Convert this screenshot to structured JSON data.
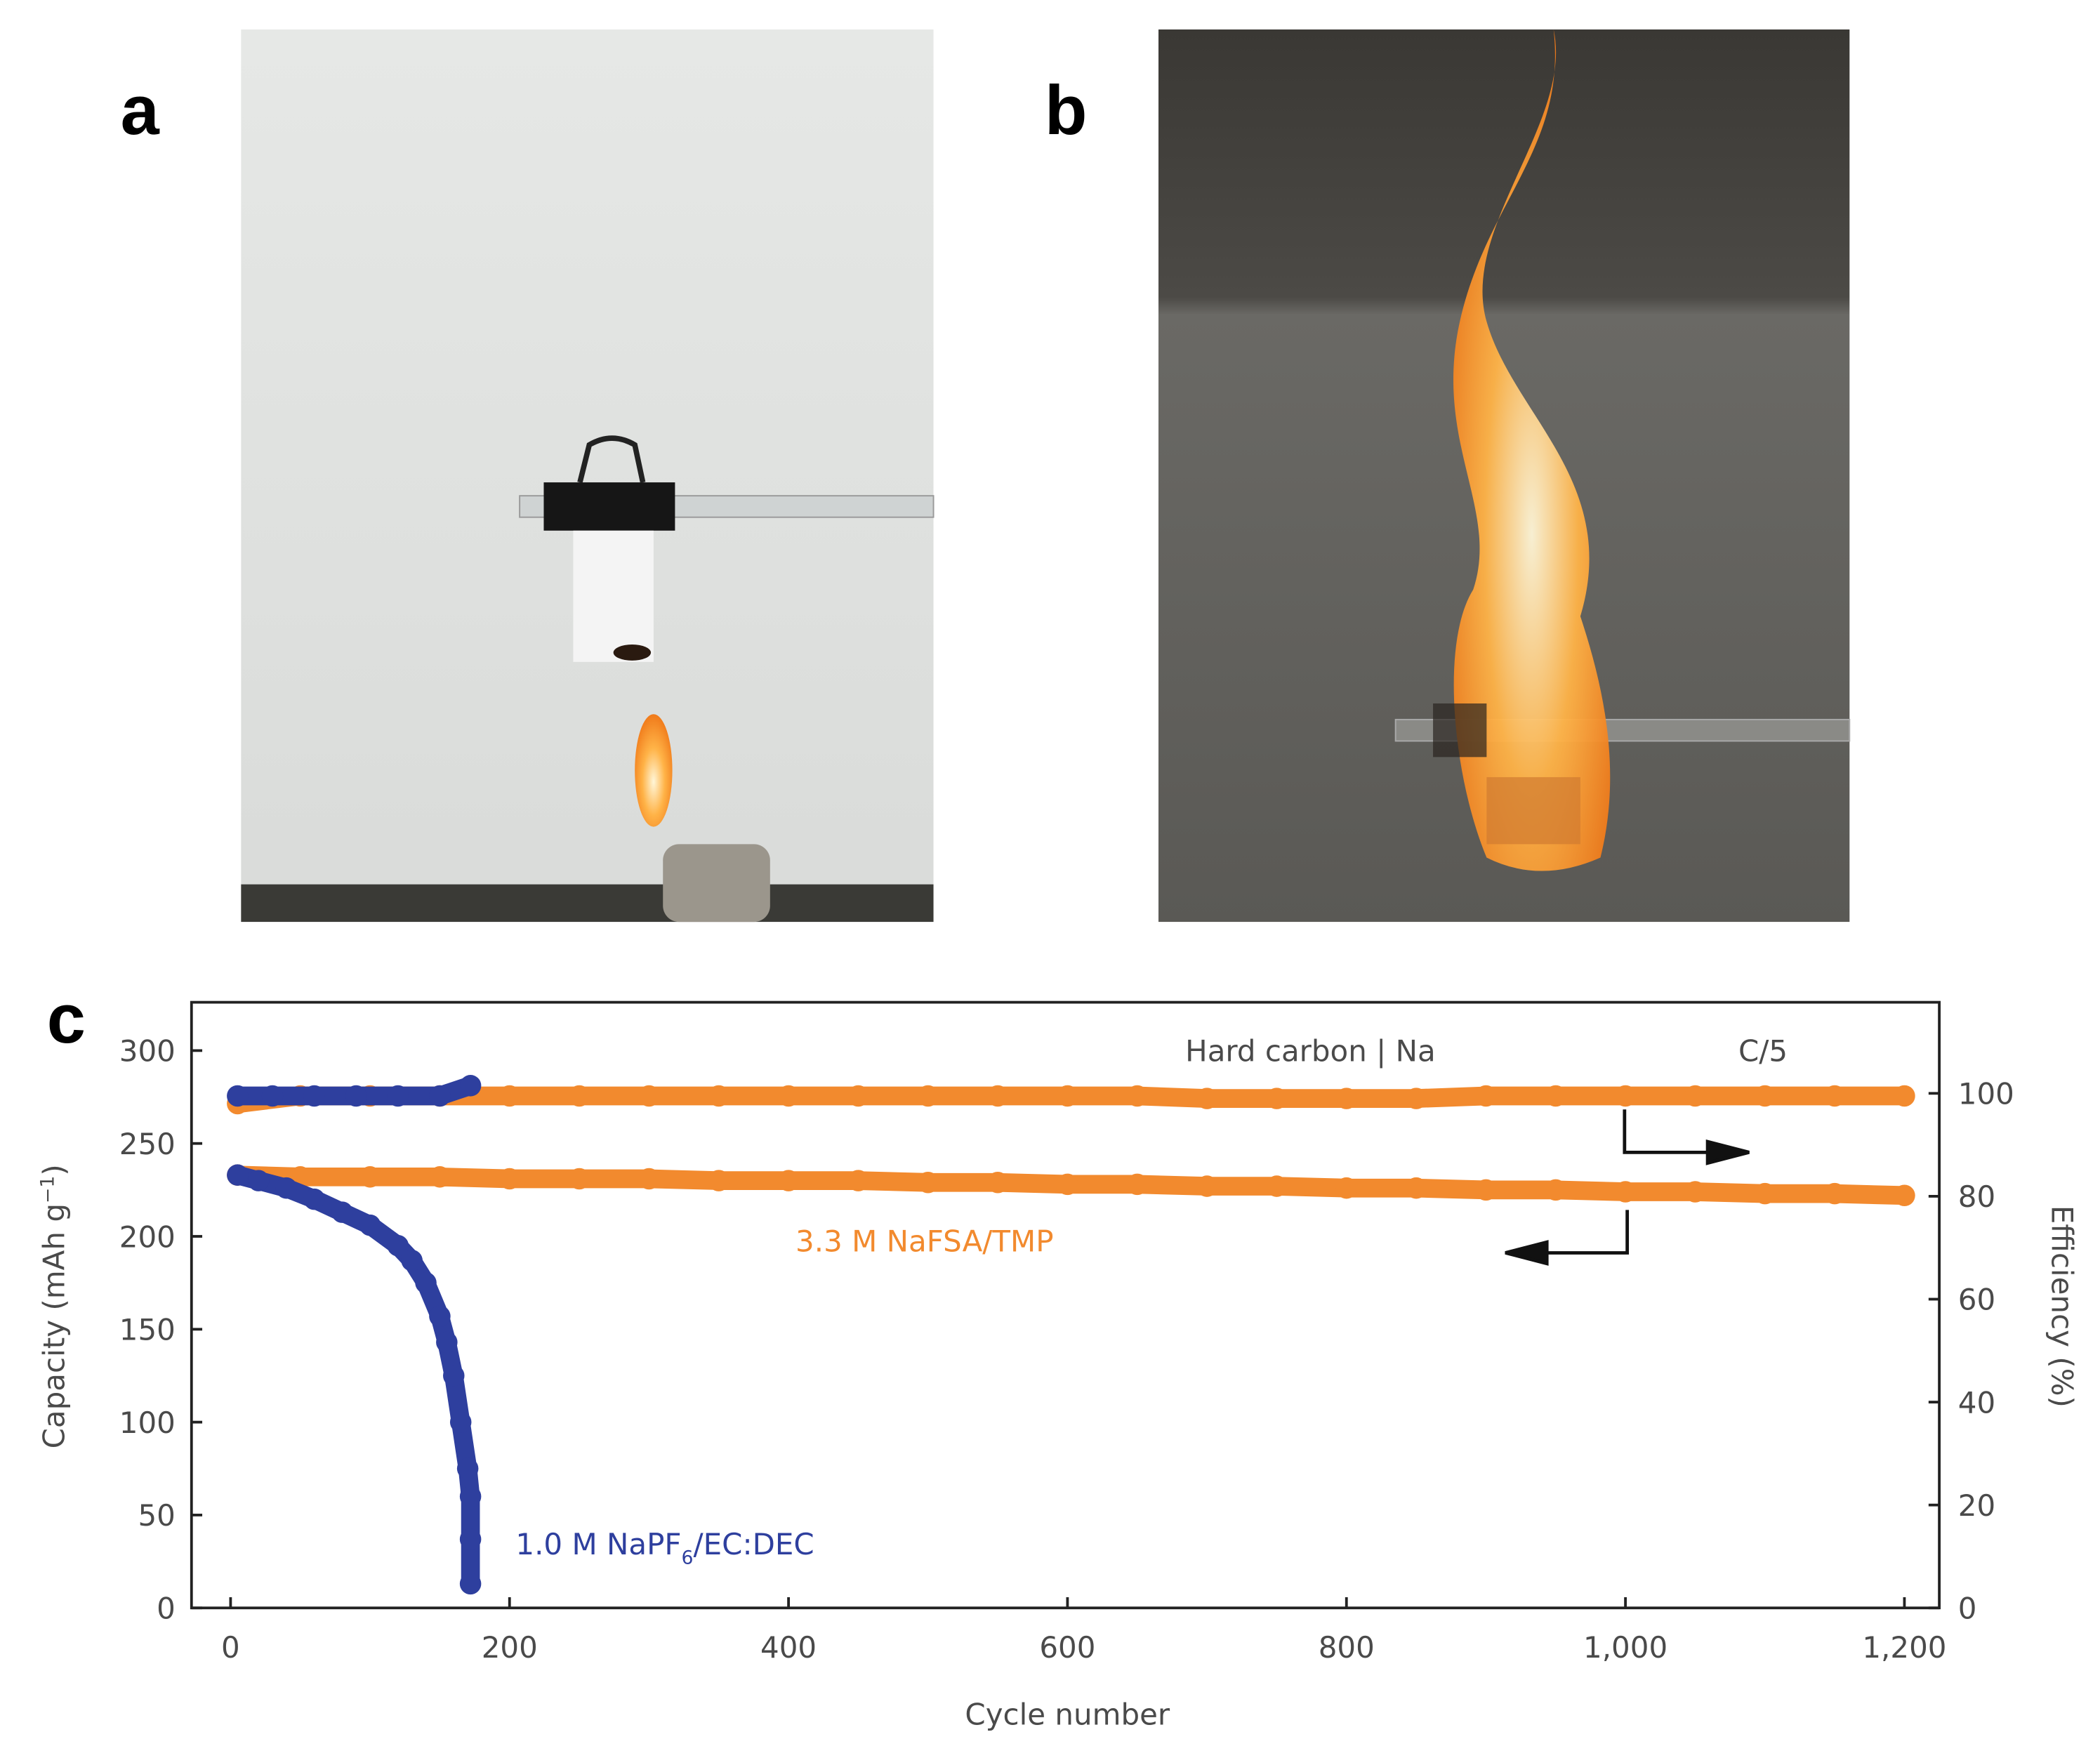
{
  "panel_labels": [
    "a",
    "b",
    "c"
  ],
  "chart_data": {
    "type": "scatter",
    "xlabel": "Cycle number",
    "ylabel": [
      "Capacity (mAh g",
      "−1",
      ")"
    ],
    "y2label": "Efficiency (%)",
    "annotations": [
      "Hard carbon | Na",
      "C/5",
      "3.3 M NaFSA/TMP",
      [
        "1.0 M NaPF",
        "6",
        "/EC:DEC"
      ]
    ],
    "xlim": [
      -28,
      1225
    ],
    "ylim": [
      0,
      326
    ],
    "y2lim": [
      0,
      117.7
    ],
    "xticks": [
      0,
      200,
      400,
      600,
      800,
      {
        "value": 1000,
        "label": "1,000"
      },
      {
        "value": 1200,
        "label": "1,200"
      }
    ],
    "yticks": [
      0,
      50,
      100,
      150,
      200,
      250,
      300
    ],
    "y2ticks": [
      0,
      20,
      40,
      60,
      80,
      100
    ],
    "series": [
      {
        "color": "#f28a2e",
        "x": [
          5,
          50,
          100,
          150,
          200,
          250,
          300,
          350,
          400,
          450,
          500,
          550,
          600,
          650,
          700,
          750,
          800,
          850,
          900,
          950,
          1000,
          1050,
          1100,
          1150,
          1200
        ],
        "values": [
          233,
          232,
          232,
          232,
          231,
          231,
          231,
          230,
          230,
          230,
          229,
          229,
          228,
          228,
          227,
          227,
          226,
          226,
          225,
          225,
          224,
          224,
          223,
          223,
          222
        ]
      },
      {
        "color": "#f28a2e",
        "axis": "y2",
        "x": [
          5,
          50,
          100,
          150,
          200,
          250,
          300,
          350,
          400,
          450,
          500,
          550,
          600,
          650,
          700,
          750,
          800,
          850,
          900,
          950,
          1000,
          1050,
          1100,
          1150,
          1200
        ],
        "values": [
          98,
          99.5,
          99.5,
          99.5,
          99.5,
          99.5,
          99.5,
          99.5,
          99.5,
          99.5,
          99.5,
          99.5,
          99.5,
          99.5,
          99,
          99,
          99,
          99,
          99.5,
          99.5,
          99.5,
          99.5,
          99.5,
          99.5,
          99.5
        ]
      },
      {
        "color": "#2e3f9e",
        "x": [
          5,
          20,
          40,
          60,
          80,
          100,
          120,
          130,
          140,
          150,
          155,
          160,
          165,
          170,
          172,
          172,
          172
        ],
        "values": [
          233,
          230,
          226,
          220,
          213,
          206,
          195,
          187,
          175,
          157,
          143,
          125,
          100,
          75,
          60,
          37,
          13
        ]
      },
      {
        "color": "#2e3f9e",
        "axis": "y2",
        "x": [
          5,
          30,
          60,
          90,
          120,
          150,
          172
        ],
        "values": [
          99.5,
          99.5,
          99.5,
          99.5,
          99.5,
          99.5,
          101.5
        ]
      }
    ]
  }
}
